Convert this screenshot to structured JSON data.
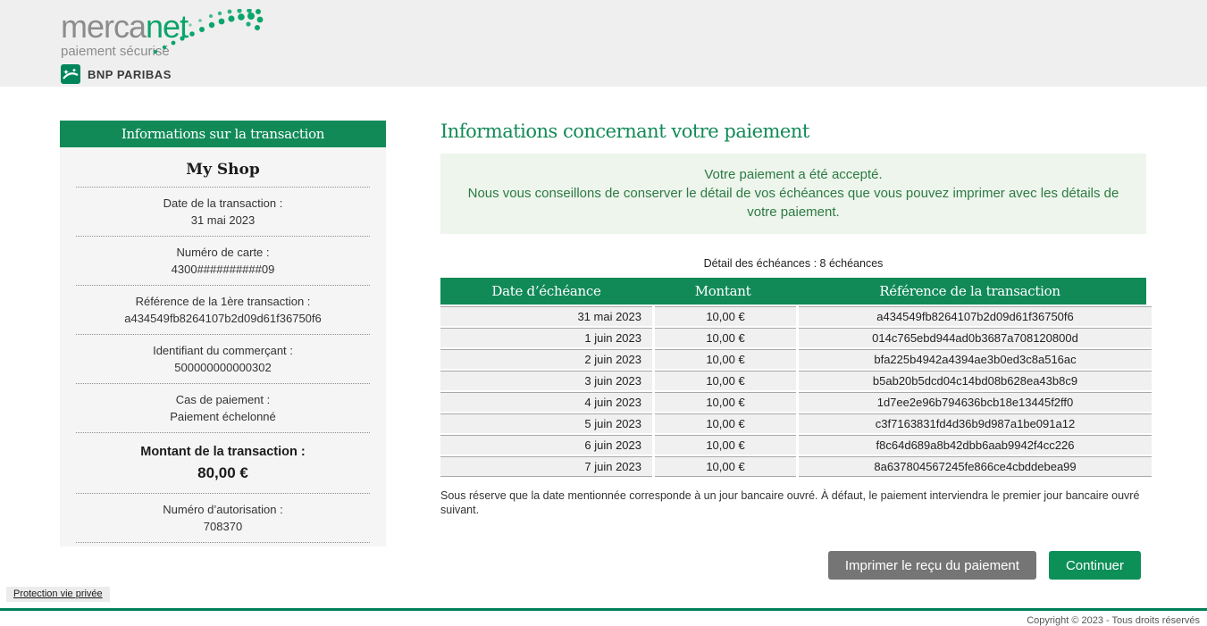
{
  "brand": {
    "name_gray": "merca",
    "name_green": "net",
    "tagline": "paiement sécurisé",
    "bank": "BNP PARIBAS"
  },
  "colors": {
    "brand_green": "#118a57",
    "logo_green": "#0aa56b",
    "success_bg": "#edf5ec",
    "success_text": "#2d7a43",
    "button_gray": "#757575",
    "button_green": "#0d8f58",
    "footer_line": "#00805a"
  },
  "sidebar": {
    "title": "Informations sur la transaction",
    "shop_name": "My Shop",
    "fields": [
      {
        "label": "Date de la transaction :",
        "value": "31 mai 2023",
        "emphasis": false
      },
      {
        "label": "Numéro de carte :",
        "value": "4300##########09",
        "emphasis": false
      },
      {
        "label": "Référence de la 1ère transaction :",
        "value": "a434549fb8264107b2d09d61f36750f6",
        "emphasis": false
      },
      {
        "label": "Identifiant du commerçant :",
        "value": "500000000000302",
        "emphasis": false
      },
      {
        "label": "Cas de paiement :",
        "value": "Paiement échelonné",
        "emphasis": false
      },
      {
        "label": "Montant de la transaction  :",
        "value": "80,00 €",
        "emphasis": true
      },
      {
        "label": "Numéro d’autorisation :",
        "value": "708370",
        "emphasis": false
      }
    ]
  },
  "main": {
    "title": "Informations concernant votre paiement",
    "success_line1": "Votre paiement a été accepté.",
    "success_line2": "Nous vous conseillons de conserver le détail de vos échéances que vous pouvez imprimer avec les détails de votre paiement.",
    "table": {
      "caption": "Détail des échéances : 8 échéances",
      "columns": [
        "Date d’échéance",
        "Montant",
        "Référence de la transaction"
      ],
      "rows": [
        {
          "date": "31 mai 2023",
          "amount": "10,00 €",
          "reference": "a434549fb8264107b2d09d61f36750f6"
        },
        {
          "date": "1 juin 2023",
          "amount": "10,00 €",
          "reference": "014c765ebd944ad0b3687a708120800d"
        },
        {
          "date": "2 juin 2023",
          "amount": "10,00 €",
          "reference": "bfa225b4942a4394ae3b0ed3c8a516ac"
        },
        {
          "date": "3 juin 2023",
          "amount": "10,00 €",
          "reference": "b5ab20b5dcd04c14bd08b628ea43b8c9"
        },
        {
          "date": "4 juin 2023",
          "amount": "10,00 €",
          "reference": "1d7ee2e96b794636bcb18e13445f2ff0"
        },
        {
          "date": "5 juin 2023",
          "amount": "10,00 €",
          "reference": "c3f7163831fd4d36b9d987a1be091a12"
        },
        {
          "date": "6 juin 2023",
          "amount": "10,00 €",
          "reference": "f8c64d689a8b42dbb6aab9942f4cc226"
        },
        {
          "date": "7 juin 2023",
          "amount": "10,00 €",
          "reference": "8a637804567245fe866ce4cbddebea99"
        }
      ]
    },
    "note": "Sous réserve que la date mentionnée corresponde à un jour bancaire ouvré. À défaut, le paiement interviendra le premier jour bancaire ouvré suivant.",
    "buttons": {
      "print": "Imprimer le reçu du paiement",
      "continue": "Continuer"
    }
  },
  "footer": {
    "privacy_link": "Protection vie privée",
    "copyright": "Copyright © 2023 - Tous droits réservés"
  }
}
